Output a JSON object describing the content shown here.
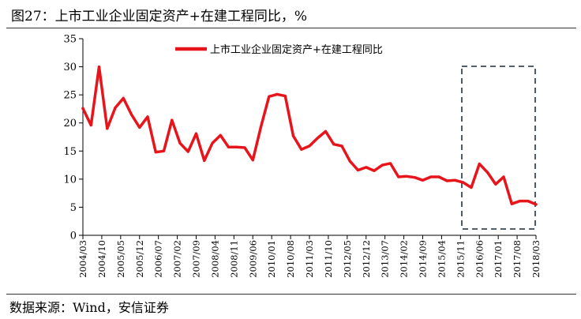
{
  "title": "图27：上市工业企业固定资产+在建工程同比，%",
  "source": "数据来源：Wind，安信证券",
  "colors": {
    "series": "#e8141c",
    "axis": "#000000",
    "highlight_box": "#3a4a5a"
  },
  "chart_data": {
    "type": "line",
    "title": "",
    "xlabel": "",
    "ylabel": "",
    "ylim": [
      0,
      35
    ],
    "y_ticks": [
      0,
      5,
      10,
      15,
      20,
      25,
      30,
      35
    ],
    "grid": false,
    "legend_position": "top-center",
    "x_tick_labels": [
      "2004/03",
      "2004/10",
      "2005/05",
      "2005/12",
      "2006/07",
      "2007/02",
      "2007/09",
      "2008/04",
      "2008/11",
      "2009/06",
      "2010/01",
      "2010/08",
      "2011/03",
      "2011/10",
      "2012/05",
      "2012/12",
      "2013/07",
      "2014/02",
      "2014/09",
      "2015/04",
      "2015/11",
      "2016/06",
      "2017/01",
      "2017/08",
      "2018/03"
    ],
    "series": [
      {
        "name": "上市工业企业固定资产+在建工程同比",
        "x": [
          "2004/03",
          "2004/06",
          "2004/09",
          "2004/12",
          "2005/03",
          "2005/06",
          "2005/09",
          "2005/12",
          "2006/03",
          "2006/06",
          "2006/09",
          "2006/12",
          "2007/03",
          "2007/06",
          "2007/09",
          "2007/12",
          "2008/03",
          "2008/06",
          "2008/09",
          "2008/12",
          "2009/03",
          "2009/06",
          "2009/09",
          "2009/12",
          "2010/03",
          "2010/06",
          "2010/09",
          "2010/12",
          "2011/03",
          "2011/06",
          "2011/09",
          "2011/12",
          "2012/03",
          "2012/06",
          "2012/09",
          "2012/12",
          "2013/03",
          "2013/06",
          "2013/09",
          "2013/12",
          "2014/03",
          "2014/06",
          "2014/09",
          "2014/12",
          "2015/03",
          "2015/06",
          "2015/09",
          "2015/12",
          "2016/03",
          "2016/06",
          "2016/09",
          "2016/12",
          "2017/03",
          "2017/06",
          "2017/09",
          "2017/12",
          "2018/03"
        ],
        "values": [
          22.6,
          19.6,
          30.0,
          19.0,
          22.7,
          24.4,
          21.5,
          19.2,
          21.1,
          14.8,
          15.0,
          20.5,
          16.4,
          14.9,
          18.1,
          13.3,
          16.4,
          17.8,
          15.7,
          15.7,
          15.6,
          13.4,
          19.3,
          24.7,
          25.1,
          24.8,
          17.7,
          15.3,
          15.9,
          17.3,
          18.5,
          16.2,
          15.9,
          13.2,
          11.6,
          12.1,
          11.5,
          12.5,
          12.8,
          10.4,
          10.5,
          10.3,
          9.8,
          10.4,
          10.4,
          9.7,
          9.8,
          9.4,
          8.5,
          12.7,
          11.2,
          9.1,
          10.4,
          5.6,
          6.1,
          6.1,
          5.5
        ]
      }
    ],
    "highlight_region": {
      "from": "2016/03",
      "to": "2018/03"
    }
  }
}
